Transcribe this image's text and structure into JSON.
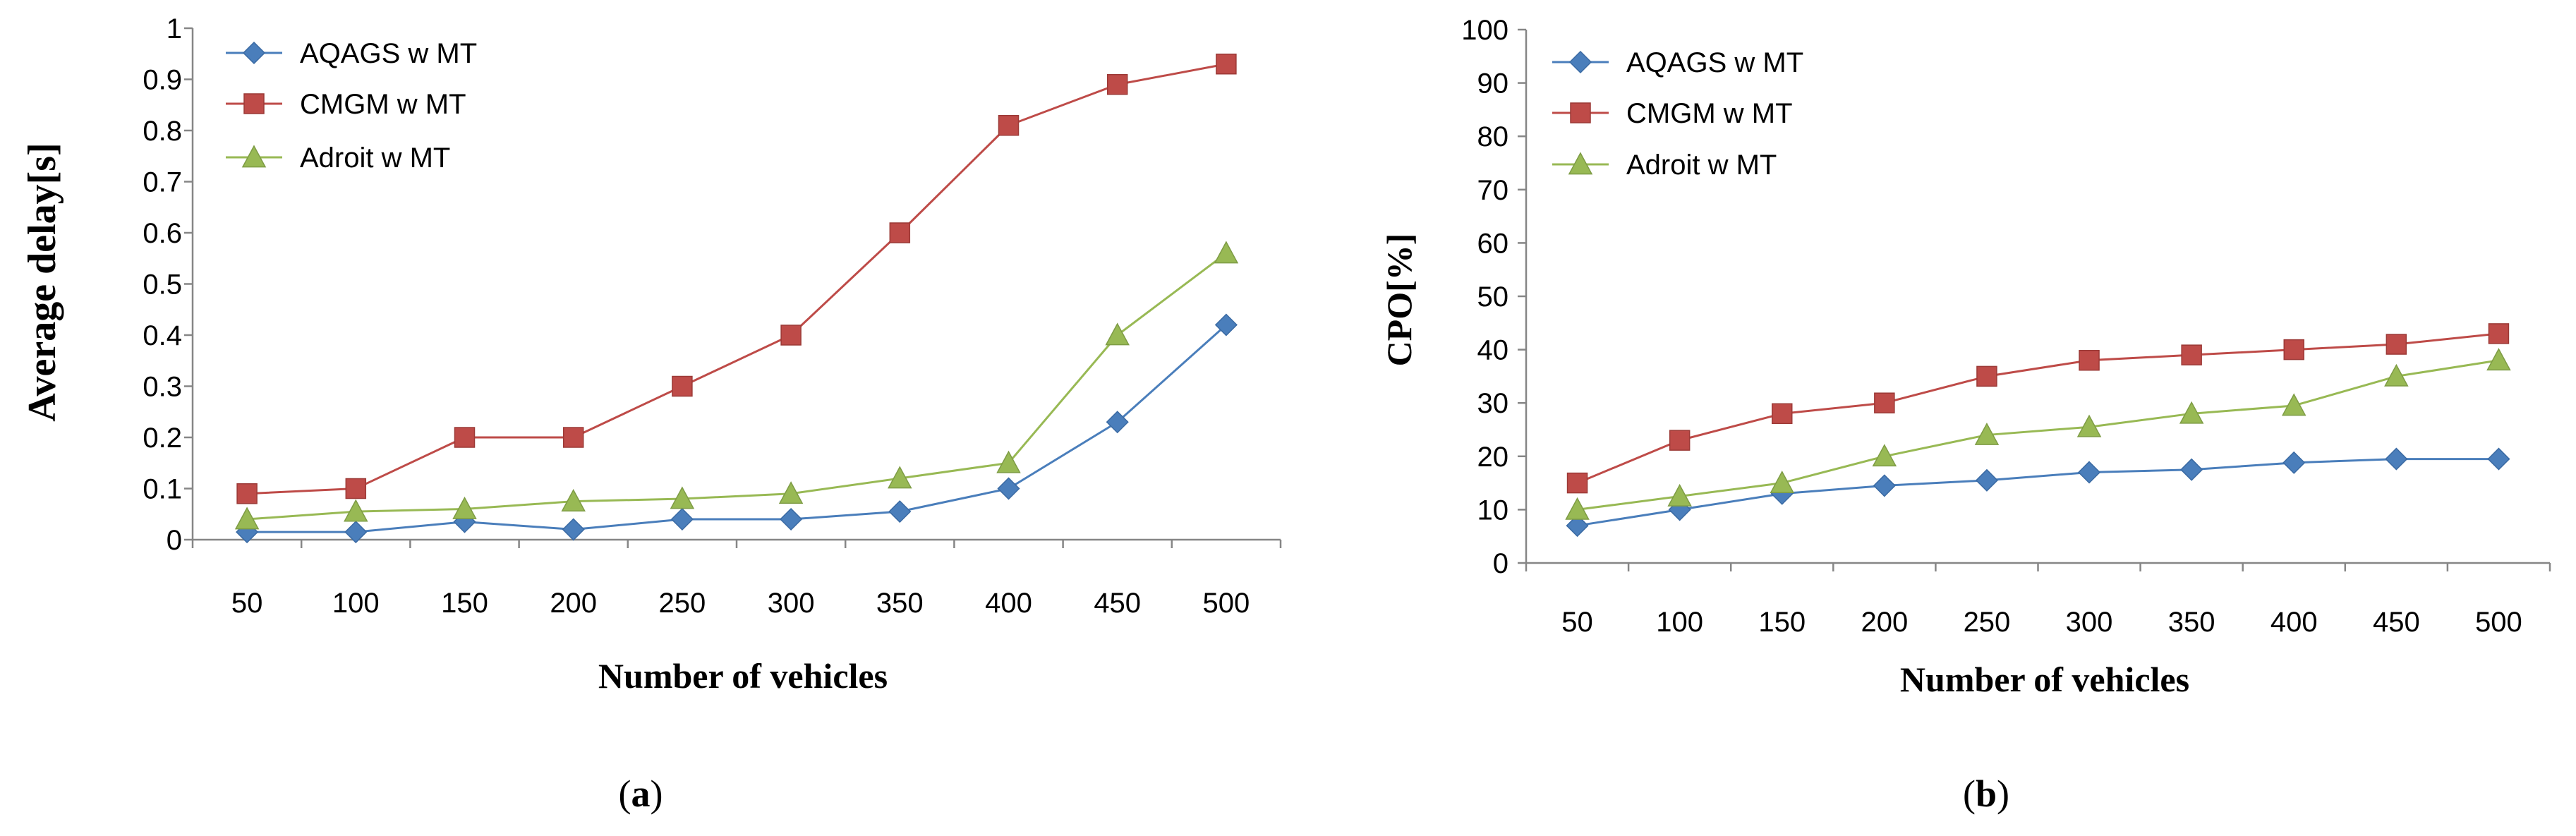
{
  "chart_data": [
    {
      "type": "line",
      "panel": "a",
      "caption_open": "(",
      "caption_letter": "a",
      "caption_close": ")",
      "xlabel": "Number of vehicles",
      "ylabel": "Average delay[s]",
      "categories": [
        "50",
        "100",
        "150",
        "200",
        "250",
        "300",
        "350",
        "400",
        "450",
        "500"
      ],
      "ylim": [
        0,
        1
      ],
      "yticks": [
        "0",
        "0.1",
        "0.2",
        "0.3",
        "0.4",
        "0.5",
        "0.6",
        "0.7",
        "0.8",
        "0.9",
        "1"
      ],
      "legend_position": "top-left",
      "series": [
        {
          "name": "AQAGS w MT",
          "color": "#4a7ebb",
          "marker": "diamond",
          "values": [
            0.015,
            0.015,
            0.035,
            0.02,
            0.04,
            0.04,
            0.055,
            0.1,
            0.23,
            0.42
          ]
        },
        {
          "name": "CMGM w MT",
          "color": "#be4b48",
          "marker": "square",
          "values": [
            0.09,
            0.1,
            0.2,
            0.2,
            0.3,
            0.4,
            0.6,
            0.81,
            0.89,
            0.93
          ]
        },
        {
          "name": "Adroit w MT",
          "color": "#98b954",
          "marker": "triangle",
          "values": [
            0.04,
            0.055,
            0.06,
            0.075,
            0.08,
            0.09,
            0.12,
            0.15,
            0.4,
            0.56
          ]
        }
      ]
    },
    {
      "type": "line",
      "panel": "b",
      "caption_open": "(",
      "caption_letter": "b",
      "caption_close": ")",
      "xlabel": "Number of vehicles",
      "ylabel": "CPO[%]",
      "categories": [
        "50",
        "100",
        "150",
        "200",
        "250",
        "300",
        "350",
        "400",
        "450",
        "500"
      ],
      "ylim": [
        0,
        100
      ],
      "yticks": [
        "0",
        "10",
        "20",
        "30",
        "40",
        "50",
        "60",
        "70",
        "80",
        "90",
        "100"
      ],
      "legend_position": "top-left",
      "series": [
        {
          "name": "AQAGS w MT",
          "color": "#4a7ebb",
          "marker": "diamond",
          "values": [
            7,
            10,
            13,
            14.5,
            15.5,
            17,
            17.5,
            18.8,
            19.5,
            19.5
          ]
        },
        {
          "name": "CMGM w MT",
          "color": "#be4b48",
          "marker": "square",
          "values": [
            15,
            23,
            28,
            30,
            35,
            38,
            39,
            40,
            41,
            43
          ]
        },
        {
          "name": "Adroit w MT",
          "color": "#98b954",
          "marker": "triangle",
          "values": [
            10,
            12.5,
            15,
            20,
            24,
            25.5,
            28,
            29.5,
            35,
            38
          ]
        }
      ]
    }
  ]
}
